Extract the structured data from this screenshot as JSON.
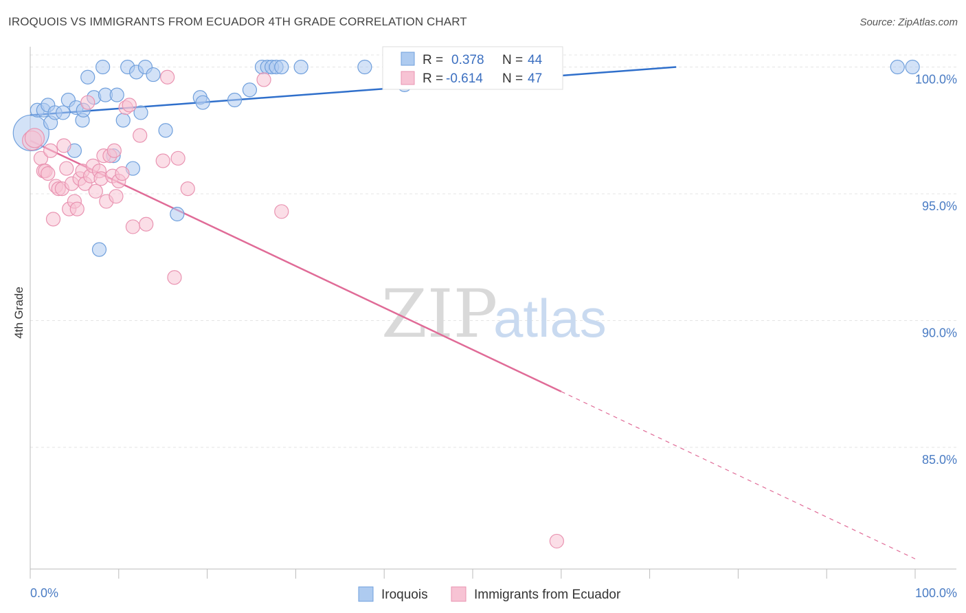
{
  "title": "IROQUOIS VS IMMIGRANTS FROM ECUADOR 4TH GRADE CORRELATION CHART",
  "source": "Source: ZipAtlas.com",
  "watermark": {
    "zip": "ZIP",
    "atlas": "atlas"
  },
  "colors": {
    "blue_fill": "#aecbf0",
    "blue_stroke": "#6f9fdc",
    "blue_line": "#2f6fcb",
    "pink_fill": "#f7c3d4",
    "pink_stroke": "#e993b1",
    "pink_line": "#e06b97",
    "grid": "#e4e4e4",
    "tick_text": "#4a7cc4"
  },
  "legend": {
    "rows": [
      {
        "r_label": "R =",
        "r_value": "0.378",
        "n_label": "N =",
        "n_value": "44",
        "series": "iroquois"
      },
      {
        "r_label": "R =",
        "r_value": "-0.614",
        "n_label": "N =",
        "n_value": "47",
        "series": "ecuador"
      }
    ]
  },
  "chart_data": {
    "type": "scatter",
    "title": "IROQUOIS VS IMMIGRANTS FROM ECUADOR 4TH GRADE CORRELATION CHART",
    "xlabel": "",
    "ylabel": "4th Grade",
    "xlim": [
      0,
      100
    ],
    "ylim": [
      80.2,
      100.8
    ],
    "x_tick_labels": [
      "0.0%",
      "100.0%"
    ],
    "y_ticks": [
      {
        "value": 100,
        "label": "100.0%"
      },
      {
        "value": 95,
        "label": "95.0%"
      },
      {
        "value": 90,
        "label": "90.0%"
      },
      {
        "value": 85,
        "label": "85.0%"
      }
    ],
    "grid": "horizontal-dashed",
    "legend_position": "top-center",
    "series": [
      {
        "name": "Iroquois",
        "color": "#aecbf0",
        "trend": {
          "x0": 0,
          "y0": 98.1,
          "x1": 73,
          "y1": 100.0,
          "dash_from": 73
        },
        "points": [
          [
            0.1,
            97.4,
            26
          ],
          [
            0.8,
            98.3,
            10
          ],
          [
            1.5,
            98.3,
            10
          ],
          [
            2.0,
            98.5,
            10
          ],
          [
            2.3,
            97.8,
            10
          ],
          [
            2.8,
            98.2,
            10
          ],
          [
            3.7,
            98.2,
            10
          ],
          [
            4.3,
            98.7,
            10
          ],
          [
            5.0,
            96.7,
            10
          ],
          [
            5.2,
            98.4,
            10
          ],
          [
            5.9,
            97.9,
            10
          ],
          [
            6.0,
            98.3,
            10
          ],
          [
            6.5,
            99.6,
            10
          ],
          [
            7.2,
            98.8,
            10
          ],
          [
            7.8,
            92.8,
            10
          ],
          [
            8.2,
            100.0,
            10
          ],
          [
            8.5,
            98.9,
            10
          ],
          [
            9.4,
            96.5,
            10
          ],
          [
            9.8,
            98.9,
            10
          ],
          [
            10.5,
            97.9,
            10
          ],
          [
            11.0,
            100.0,
            10
          ],
          [
            11.6,
            96.0,
            10
          ],
          [
            12.0,
            99.8,
            10
          ],
          [
            12.5,
            98.2,
            10
          ],
          [
            13.0,
            100.0,
            10
          ],
          [
            13.9,
            99.7,
            10
          ],
          [
            15.3,
            97.5,
            10
          ],
          [
            16.6,
            94.2,
            10
          ],
          [
            19.2,
            98.8,
            10
          ],
          [
            19.5,
            98.6,
            10
          ],
          [
            23.1,
            98.7,
            10
          ],
          [
            24.8,
            99.1,
            10
          ],
          [
            26.2,
            100.0,
            10
          ],
          [
            26.8,
            100.0,
            10
          ],
          [
            27.3,
            100.0,
            10
          ],
          [
            27.8,
            100.0,
            10
          ],
          [
            28.4,
            100.0,
            10
          ],
          [
            30.6,
            100.0,
            10
          ],
          [
            37.8,
            100.0,
            10
          ],
          [
            42.3,
            99.3,
            10
          ],
          [
            43.5,
            100.0,
            10
          ],
          [
            55.8,
            99.4,
            10
          ],
          [
            98.0,
            100.0,
            10
          ],
          [
            99.7,
            100.0,
            10
          ]
        ]
      },
      {
        "name": "Immigrants from Ecuador",
        "color": "#f7c3d4",
        "trend": {
          "x0": 0,
          "y0": 97.1,
          "x1": 60,
          "y1": 87.2,
          "dash_to_x": 100,
          "dash_to_y": 80.6
        },
        "points": [
          [
            0.2,
            97.1,
            14
          ],
          [
            0.5,
            97.2,
            14
          ],
          [
            1.2,
            96.4,
            10
          ],
          [
            1.5,
            95.9,
            10
          ],
          [
            1.7,
            95.9,
            10
          ],
          [
            2.0,
            95.8,
            10
          ],
          [
            2.3,
            96.7,
            10
          ],
          [
            2.6,
            94.0,
            10
          ],
          [
            2.9,
            95.3,
            10
          ],
          [
            3.2,
            95.2,
            10
          ],
          [
            3.6,
            95.2,
            10
          ],
          [
            3.8,
            96.9,
            10
          ],
          [
            4.1,
            96.0,
            10
          ],
          [
            4.4,
            94.4,
            10
          ],
          [
            4.7,
            95.4,
            10
          ],
          [
            5.0,
            94.7,
            10
          ],
          [
            5.3,
            94.4,
            10
          ],
          [
            5.6,
            95.6,
            10
          ],
          [
            5.9,
            95.9,
            10
          ],
          [
            6.2,
            95.4,
            10
          ],
          [
            6.5,
            98.6,
            10
          ],
          [
            6.8,
            95.7,
            10
          ],
          [
            7.1,
            96.1,
            10
          ],
          [
            7.4,
            95.1,
            10
          ],
          [
            7.8,
            95.9,
            10
          ],
          [
            8.0,
            95.6,
            10
          ],
          [
            8.3,
            96.5,
            10
          ],
          [
            8.6,
            94.7,
            10
          ],
          [
            9.0,
            96.5,
            10
          ],
          [
            9.3,
            95.7,
            10
          ],
          [
            9.5,
            96.7,
            10
          ],
          [
            9.7,
            94.9,
            10
          ],
          [
            10.0,
            95.5,
            10
          ],
          [
            10.4,
            95.8,
            10
          ],
          [
            10.8,
            98.4,
            10
          ],
          [
            11.2,
            98.5,
            10
          ],
          [
            11.6,
            93.7,
            10
          ],
          [
            12.4,
            97.3,
            10
          ],
          [
            13.1,
            93.8,
            10
          ],
          [
            15.0,
            96.3,
            10
          ],
          [
            15.5,
            99.6,
            10
          ],
          [
            16.3,
            91.7,
            10
          ],
          [
            16.7,
            96.4,
            10
          ],
          [
            17.8,
            95.2,
            10
          ],
          [
            26.4,
            99.5,
            10
          ],
          [
            28.4,
            94.3,
            10
          ],
          [
            59.5,
            81.3,
            10
          ]
        ]
      }
    ]
  }
}
